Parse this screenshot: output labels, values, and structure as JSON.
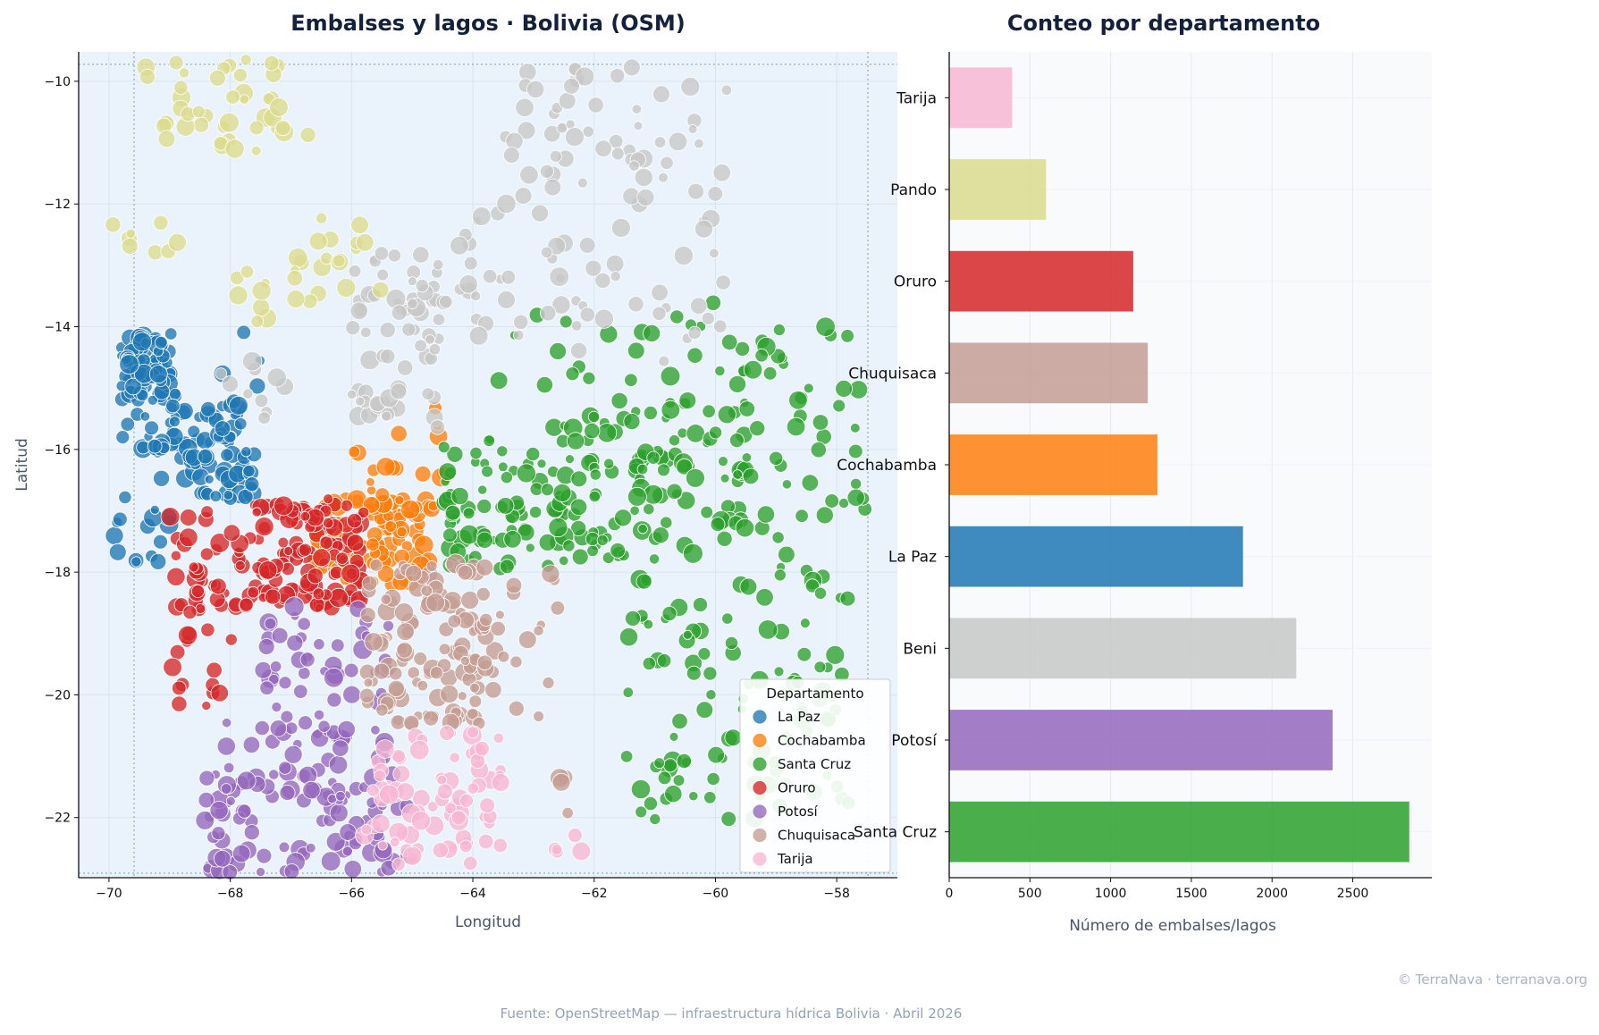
{
  "chart_data": [
    {
      "type": "scatter",
      "title": "Embalses y lagos · Bolivia (OSM)",
      "xlabel": "Longitud",
      "ylabel": "Latitud",
      "xlim": [
        -70.5,
        -57.0
      ],
      "ylim": [
        -22.98,
        -9.52
      ],
      "xticks": [
        -70,
        -68,
        -66,
        -64,
        -62,
        -60,
        -58
      ],
      "yticks": [
        -10,
        -12,
        -14,
        -16,
        -18,
        -20,
        -22
      ],
      "xtick_labels": [
        "−70",
        "−68",
        "−66",
        "−64",
        "−62",
        "−60",
        "−58"
      ],
      "ytick_labels": [
        "−10",
        "−12",
        "−14",
        "−16",
        "−18",
        "−20",
        "−22"
      ],
      "grid": true,
      "legend": {
        "title": "Departamento",
        "position": "lower-right"
      },
      "series": [
        {
          "name": "La Paz",
          "color": "#1f77b4",
          "clusters": [
            {
              "x": [
                -69.8,
                -68.9
              ],
              "y": [
                -15.2,
                -14.1
              ],
              "n": 75
            },
            {
              "x": [
                -69.0,
                -67.6
              ],
              "y": [
                -16.8,
                -15.2
              ],
              "n": 80
            },
            {
              "x": [
                -70.0,
                -69.0
              ],
              "y": [
                -17.9,
                -15.4
              ],
              "n": 30
            },
            {
              "x": [
                -68.3,
                -67.5
              ],
              "y": [
                -15.6,
                -14.0
              ],
              "n": 6
            }
          ]
        },
        {
          "name": "Cochabamba",
          "color": "#ff7f0e",
          "clusters": [
            {
              "x": [
                -66.6,
                -64.7
              ],
              "y": [
                -18.2,
                -16.8
              ],
              "n": 110
            },
            {
              "x": [
                -66.0,
                -64.3
              ],
              "y": [
                -17.0,
                -15.3
              ],
              "n": 22
            }
          ]
        },
        {
          "name": "Santa Cruz",
          "color": "#2ca02c",
          "clusters": [
            {
              "x": [
                -64.5,
                -62.5
              ],
              "y": [
                -18.0,
                -15.8
              ],
              "n": 75
            },
            {
              "x": [
                -62.8,
                -59.5
              ],
              "y": [
                -17.8,
                -15.2
              ],
              "n": 120
            },
            {
              "x": [
                -59.8,
                -57.5
              ],
              "y": [
                -18.0,
                -14.0
              ],
              "n": 55
            },
            {
              "x": [
                -61.5,
                -57.8
              ],
              "y": [
                -22.1,
                -18.0
              ],
              "n": 110
            },
            {
              "x": [
                -63.6,
                -59.5
              ],
              "y": [
                -15.0,
                -13.5
              ],
              "n": 22
            }
          ]
        },
        {
          "name": "Oruro",
          "color": "#d62728",
          "clusters": [
            {
              "x": [
                -67.6,
                -65.8
              ],
              "y": [
                -18.6,
                -16.8
              ],
              "n": 120
            },
            {
              "x": [
                -69.0,
                -67.6
              ],
              "y": [
                -18.6,
                -17.0
              ],
              "n": 45
            },
            {
              "x": [
                -69.0,
                -67.9
              ],
              "y": [
                -20.2,
                -18.6
              ],
              "n": 16
            }
          ]
        },
        {
          "name": "Potosí",
          "color": "#9467bd",
          "clusters": [
            {
              "x": [
                -68.5,
                -65.0
              ],
              "y": [
                -22.9,
                -21.2
              ],
              "n": 90
            },
            {
              "x": [
                -67.5,
                -65.3
              ],
              "y": [
                -21.2,
                -18.5
              ],
              "n": 65
            },
            {
              "x": [
                -68.2,
                -66.0
              ],
              "y": [
                -21.8,
                -20.4
              ],
              "n": 20
            }
          ]
        },
        {
          "name": "Beni",
          "color": "#c7c7c7",
          "clusters": [
            {
              "x": [
                -66.0,
                -64.5
              ],
              "y": [
                -15.7,
                -12.8
              ],
              "n": 70
            },
            {
              "x": [
                -64.5,
                -61.0
              ],
              "y": [
                -14.5,
                -12.0
              ],
              "n": 45
            },
            {
              "x": [
                -63.6,
                -60.5
              ],
              "y": [
                -12.0,
                -9.7
              ],
              "n": 50
            },
            {
              "x": [
                -61.2,
                -59.8
              ],
              "y": [
                -14.6,
                -9.9
              ],
              "n": 25
            },
            {
              "x": [
                -68.3,
                -67.0
              ],
              "y": [
                -15.7,
                -14.0
              ],
              "n": 10
            }
          ]
        },
        {
          "name": "Chuquisaca",
          "color": "#c49c94",
          "clusters": [
            {
              "x": [
                -65.8,
                -63.9
              ],
              "y": [
                -20.5,
                -17.8
              ],
              "n": 120
            },
            {
              "x": [
                -64.0,
                -62.6
              ],
              "y": [
                -20.6,
                -17.8
              ],
              "n": 30
            },
            {
              "x": [
                -62.6,
                -62.2
              ],
              "y": [
                -22.0,
                -21.1
              ],
              "n": 4
            }
          ]
        },
        {
          "name": "Tarija",
          "color": "#f7b6d2",
          "clusters": [
            {
              "x": [
                -65.8,
                -63.5
              ],
              "y": [
                -22.8,
                -20.6
              ],
              "n": 85
            },
            {
              "x": [
                -62.7,
                -62.2
              ],
              "y": [
                -22.7,
                -22.1
              ],
              "n": 5
            }
          ]
        },
        {
          "name": "Pando",
          "color": "#dbdb8d",
          "clusters": [
            {
              "x": [
                -69.5,
                -66.7
              ],
              "y": [
                -11.2,
                -9.6
              ],
              "n": 45
            },
            {
              "x": [
                -67.0,
                -65.5
              ],
              "y": [
                -13.8,
                -12.0
              ],
              "n": 20
            },
            {
              "x": [
                -70.0,
                -68.8
              ],
              "y": [
                -12.8,
                -12.3
              ],
              "n": 8
            },
            {
              "x": [
                -68.0,
                -67.3
              ],
              "y": [
                -14.0,
                -13.0
              ],
              "n": 8
            }
          ]
        }
      ]
    },
    {
      "type": "bar",
      "orientation": "horizontal",
      "title": "Conteo por departamento",
      "xlabel": "Número de embalses/lagos",
      "ylabel": "",
      "categories": [
        "Santa Cruz",
        "Potosí",
        "Beni",
        "La Paz",
        "Cochabamba",
        "Chuquisaca",
        "Oruro",
        "Pando",
        "Tarija"
      ],
      "values": [
        2850,
        2375,
        2150,
        1820,
        1290,
        1230,
        1140,
        600,
        390
      ],
      "colors": [
        "#2ca02c",
        "#9467bd",
        "#c7c7c7",
        "#1f77b4",
        "#ff7f0e",
        "#c49c94",
        "#d62728",
        "#dbdb8d",
        "#f7b6d2"
      ],
      "xlim": [
        0,
        2990
      ],
      "xticks": [
        0,
        500,
        1000,
        1500,
        2000,
        2500
      ],
      "xtick_labels": [
        "0",
        "500",
        "1000",
        "1500",
        "2000",
        "2500"
      ],
      "grid": true
    }
  ],
  "footer": {
    "source": "Fuente: OpenStreetMap — infraestructura hídrica Bolivia · Abril 2026",
    "credit": "© TerraNava · terranava.org"
  }
}
